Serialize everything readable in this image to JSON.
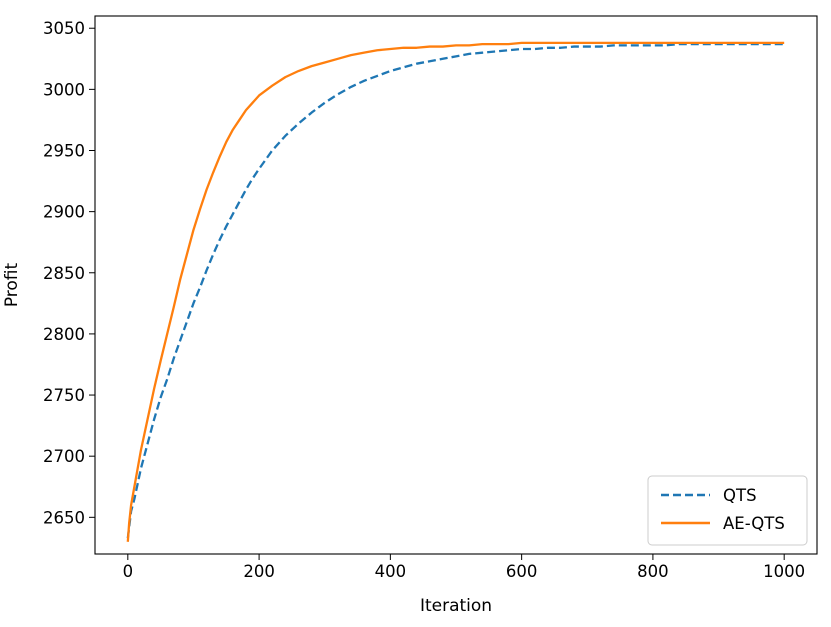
{
  "chart_data": {
    "type": "line",
    "title": "",
    "xlabel": "Iteration",
    "ylabel": "Profit",
    "xlim": [
      -50,
      1050
    ],
    "ylim": [
      2620,
      3060
    ],
    "xticks": [
      0,
      200,
      400,
      600,
      800,
      1000
    ],
    "yticks": [
      2650,
      2700,
      2750,
      2800,
      2850,
      2900,
      2950,
      3000,
      3050
    ],
    "grid": false,
    "legend_position": "lower right",
    "series": [
      {
        "name": "QTS",
        "color": "#1f77b4",
        "style": "dashed",
        "x": [
          0,
          5,
          10,
          20,
          30,
          40,
          50,
          60,
          70,
          80,
          90,
          100,
          110,
          120,
          130,
          140,
          150,
          160,
          170,
          180,
          190,
          200,
          220,
          240,
          260,
          280,
          300,
          320,
          340,
          360,
          380,
          400,
          420,
          440,
          460,
          480,
          500,
          520,
          540,
          560,
          580,
          600,
          620,
          640,
          660,
          680,
          700,
          720,
          740,
          760,
          780,
          800,
          820,
          840,
          860,
          880,
          900,
          920,
          940,
          960,
          980,
          1000
        ],
        "y": [
          2633,
          2655,
          2665,
          2690,
          2710,
          2730,
          2748,
          2763,
          2780,
          2795,
          2810,
          2825,
          2838,
          2852,
          2865,
          2877,
          2888,
          2898,
          2908,
          2918,
          2927,
          2935,
          2950,
          2962,
          2972,
          2981,
          2989,
          2996,
          3002,
          3007,
          3011,
          3015,
          3018,
          3021,
          3023,
          3025,
          3027,
          3029,
          3030,
          3031,
          3032,
          3033,
          3033,
          3034,
          3034,
          3035,
          3035,
          3035,
          3036,
          3036,
          3036,
          3036,
          3036,
          3037,
          3037,
          3037,
          3037,
          3037,
          3037,
          3037,
          3037,
          3037
        ]
      },
      {
        "name": "AE-QTS",
        "color": "#ff7f0e",
        "style": "solid",
        "x": [
          0,
          2,
          5,
          10,
          15,
          20,
          30,
          40,
          50,
          60,
          70,
          80,
          90,
          100,
          110,
          120,
          130,
          140,
          150,
          160,
          170,
          180,
          190,
          200,
          220,
          240,
          260,
          280,
          300,
          320,
          340,
          360,
          380,
          400,
          420,
          440,
          460,
          480,
          500,
          520,
          540,
          560,
          580,
          600,
          650,
          700,
          750,
          800,
          850,
          900,
          950,
          1000
        ],
        "y": [
          2630,
          2645,
          2660,
          2675,
          2690,
          2705,
          2730,
          2755,
          2778,
          2800,
          2822,
          2845,
          2865,
          2885,
          2902,
          2918,
          2932,
          2945,
          2957,
          2967,
          2975,
          2983,
          2989,
          2995,
          3003,
          3010,
          3015,
          3019,
          3022,
          3025,
          3028,
          3030,
          3032,
          3033,
          3034,
          3034,
          3035,
          3035,
          3036,
          3036,
          3037,
          3037,
          3037,
          3038,
          3038,
          3038,
          3038,
          3038,
          3038,
          3038,
          3038,
          3038
        ]
      }
    ]
  }
}
